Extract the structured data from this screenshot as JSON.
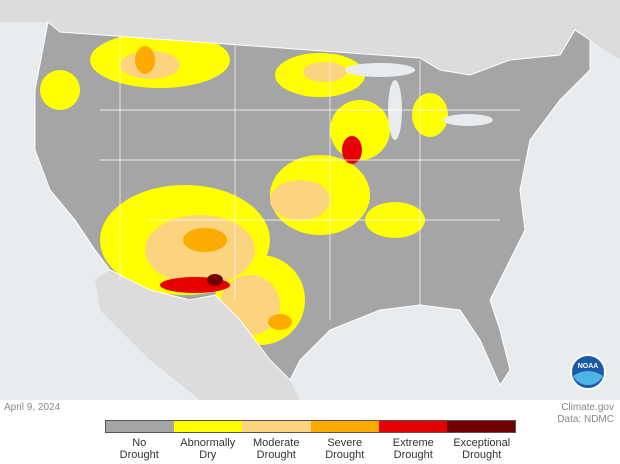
{
  "date": "April 9, 2024",
  "credit": "Climate.gov",
  "source": "Data: NDMC",
  "logo": "NOAA",
  "legend": [
    {
      "label": "No Drought",
      "color": "#a5a5a5"
    },
    {
      "label": "Abnormally Dry",
      "color": "#ffff00"
    },
    {
      "label": "Moderate Drought",
      "color": "#fcd37f"
    },
    {
      "label": "Severe Drought",
      "color": "#ffaa00"
    },
    {
      "label": "Extreme Drought",
      "color": "#e60000"
    },
    {
      "label": "Exceptional Drought",
      "color": "#730000"
    }
  ]
}
